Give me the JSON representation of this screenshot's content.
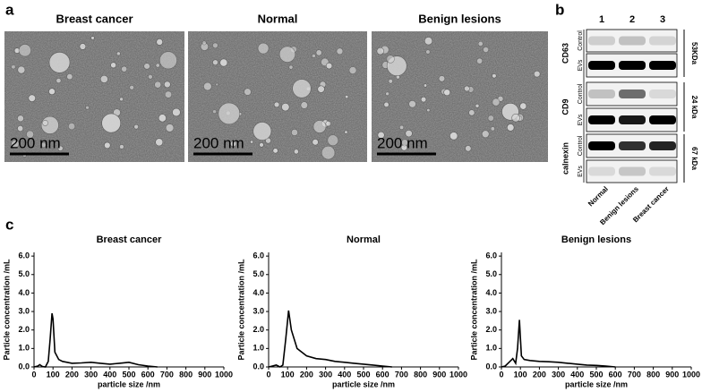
{
  "figure": {
    "panel_labels": [
      "a",
      "b",
      "c"
    ],
    "em": {
      "titles": [
        "Breast cancer",
        "Normal",
        "Benign lesions"
      ],
      "scale_bars": [
        "200 nm",
        "200 nm",
        "200 nm"
      ]
    },
    "blot": {
      "lanes": [
        "1",
        "2",
        "3"
      ],
      "proteins": [
        {
          "name": "CD63",
          "rows": [
            "Control",
            "EVs"
          ],
          "size": "53KDa"
        },
        {
          "name": "CD9",
          "rows": [
            "Control",
            "EVs"
          ],
          "size": "24 kDa"
        },
        {
          "name": "calnexin",
          "rows": [
            "Control",
            "EVs"
          ],
          "size": "67 kDa"
        }
      ],
      "samples": [
        "Normal",
        "Benign lesions",
        "Breast cancer"
      ]
    }
  },
  "chart_data": [
    {
      "type": "line",
      "title": "Breast cancer",
      "x_label": "particle size /nm",
      "y_label": "Particle concentration /mL",
      "x": [
        0,
        20,
        30,
        45,
        60,
        75,
        85,
        95,
        100,
        110,
        130,
        150,
        200,
        250,
        300,
        350,
        400,
        450,
        500,
        550,
        600,
        650
      ],
      "values": [
        0,
        0.05,
        0.12,
        0.02,
        0,
        0.3,
        1.5,
        2.9,
        2.6,
        0.8,
        0.4,
        0.3,
        0.2,
        0.22,
        0.25,
        0.2,
        0.15,
        0.2,
        0.25,
        0.12,
        0.05,
        0
      ],
      "color": "#000000",
      "xlim": [
        0,
        1000
      ],
      "xticks": [
        0,
        100,
        200,
        300,
        400,
        500,
        600,
        700,
        800,
        900,
        1000
      ],
      "ylim": [
        0,
        6.2
      ],
      "yticks": [
        {
          "value": 0,
          "label": "0.0"
        },
        {
          "value": 1,
          "label": "1.0"
        },
        {
          "value": 2,
          "label": "2.0"
        },
        {
          "value": 3,
          "label": "3.0"
        },
        {
          "value": 4,
          "label": "4.0"
        },
        {
          "value": 5,
          "label": "5.0"
        },
        {
          "value": 6,
          "label": "6.0"
        }
      ]
    },
    {
      "type": "line",
      "title": "Normal",
      "x_label": "particle size /nm",
      "y_label": "Particle concentration /mL",
      "x": [
        0,
        20,
        40,
        60,
        75,
        90,
        105,
        120,
        150,
        200,
        250,
        300,
        350,
        400,
        450,
        500,
        550,
        600,
        650
      ],
      "values": [
        0,
        0.05,
        0.1,
        0,
        0.1,
        1.5,
        3.05,
        2.0,
        1.0,
        0.6,
        0.45,
        0.4,
        0.3,
        0.25,
        0.2,
        0.15,
        0.1,
        0.05,
        0
      ],
      "color": "#000000",
      "xlim": [
        0,
        1000
      ],
      "xticks": [
        0,
        100,
        200,
        300,
        400,
        500,
        600,
        700,
        800,
        900,
        1000
      ],
      "ylim": [
        0,
        6.2
      ],
      "yticks": [
        {
          "value": 0,
          "label": "0.0"
        },
        {
          "value": 1,
          "label": "1.0"
        },
        {
          "value": 2,
          "label": "2.0"
        },
        {
          "value": 3,
          "label": "3.0"
        },
        {
          "value": 4,
          "label": "4.0"
        },
        {
          "value": 5,
          "label": "5.0"
        },
        {
          "value": 6,
          "label": "6.0"
        }
      ]
    },
    {
      "type": "line",
      "title": "Benign lesions",
      "x_label": "particle size /nm",
      "y_label": "Particle concentration /mL",
      "x": [
        0,
        20,
        40,
        60,
        75,
        85,
        95,
        105,
        120,
        150,
        200,
        250,
        300,
        350,
        400,
        450,
        500,
        550,
        600
      ],
      "values": [
        0,
        0.05,
        0.25,
        0.45,
        0.2,
        1.0,
        2.55,
        0.6,
        0.4,
        0.35,
        0.3,
        0.28,
        0.25,
        0.2,
        0.15,
        0.1,
        0.08,
        0.05,
        0
      ],
      "color": "#000000",
      "xlim": [
        0,
        1000
      ],
      "xticks": [
        0,
        100,
        200,
        300,
        400,
        500,
        600,
        700,
        800,
        900,
        1000
      ],
      "ylim": [
        0,
        6.2
      ],
      "yticks": [
        {
          "value": 0,
          "label": "0.0"
        },
        {
          "value": 1,
          "label": "1.0"
        },
        {
          "value": 2,
          "label": "2.0"
        },
        {
          "value": 3,
          "label": "3.0"
        },
        {
          "value": 4,
          "label": "4.0"
        },
        {
          "value": 5,
          "label": "5.0"
        },
        {
          "value": 6,
          "label": "6.0"
        }
      ]
    }
  ]
}
